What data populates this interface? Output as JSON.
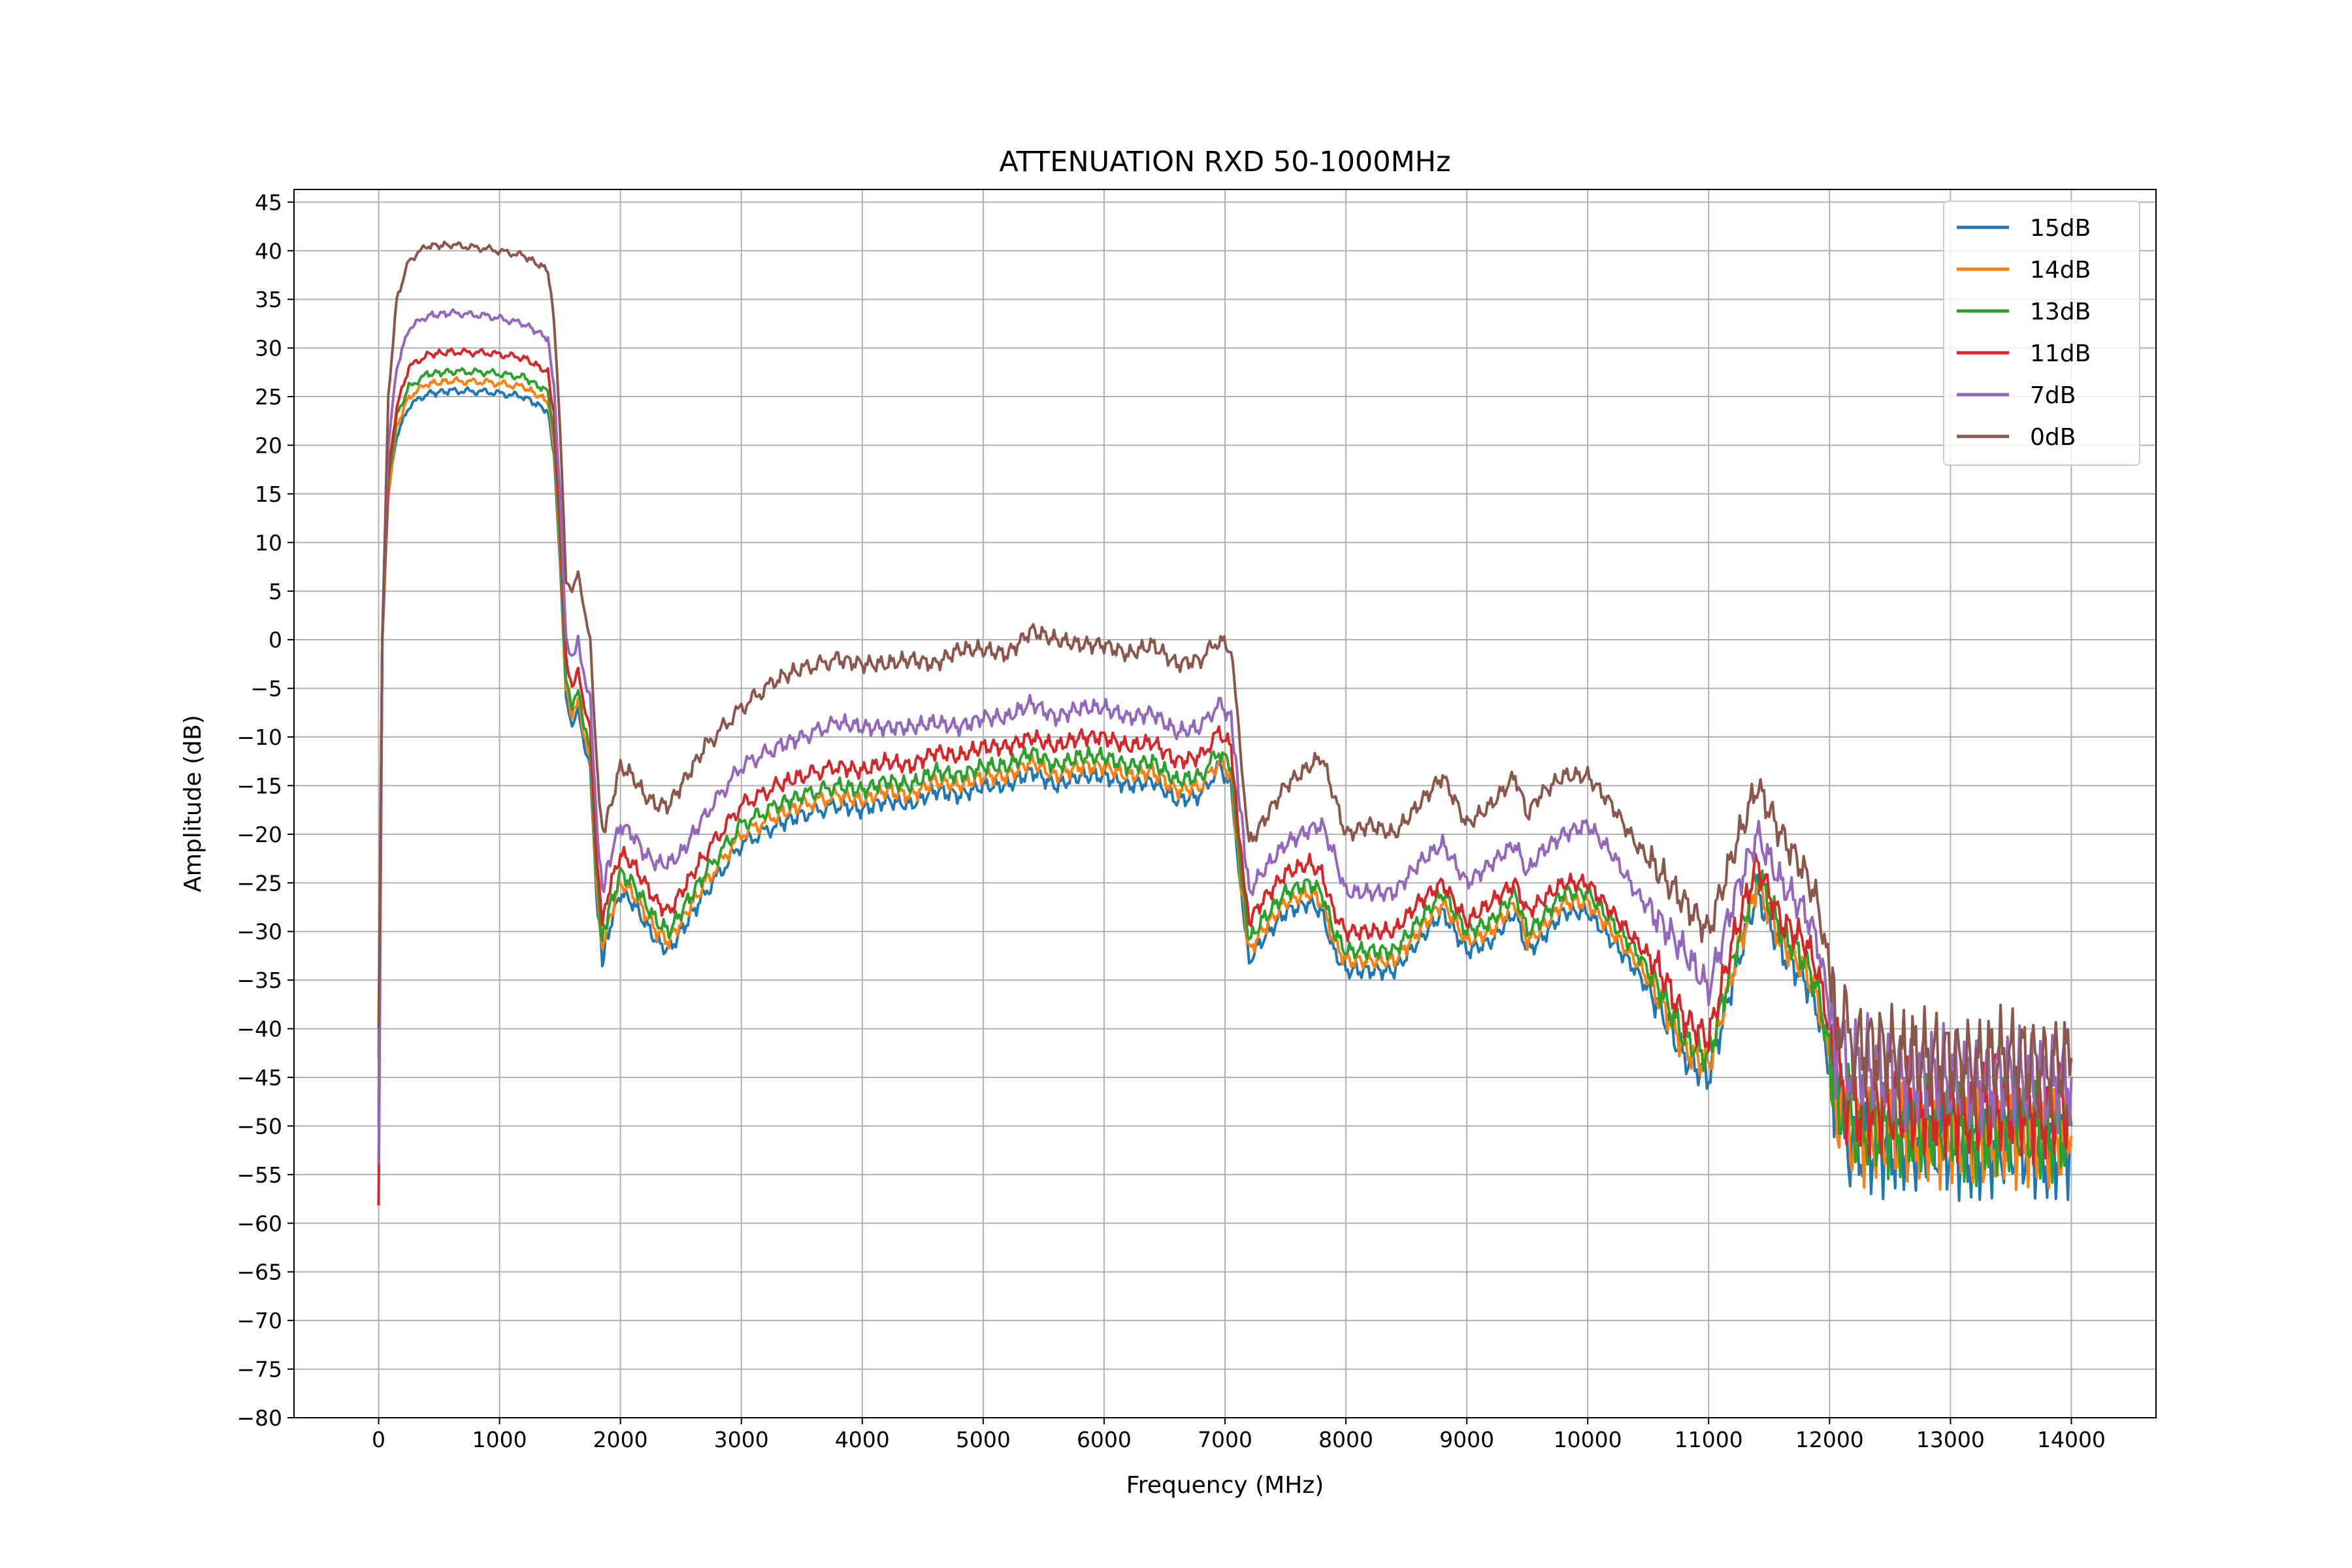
{
  "chart_data": {
    "type": "line",
    "title": "ATTENUATION RXD 50-1000MHz",
    "xlabel": "Frequency (MHz)",
    "ylabel": "Amplitude (dB)",
    "xlim": [
      -700,
      14700
    ],
    "ylim": [
      -80,
      46.3
    ],
    "xticks": [
      0,
      1000,
      2000,
      3000,
      4000,
      5000,
      6000,
      7000,
      8000,
      9000,
      10000,
      11000,
      12000,
      13000,
      14000
    ],
    "yticks": [
      45,
      40,
      35,
      30,
      25,
      20,
      15,
      10,
      5,
      0,
      -5,
      -10,
      -15,
      -20,
      -25,
      -30,
      -35,
      -40,
      -45,
      -50,
      -55,
      -60,
      -65,
      -70,
      -75,
      -80
    ],
    "grid": true,
    "legend_position": "top-right",
    "x": [
      0,
      30,
      80,
      150,
      250,
      400,
      600,
      900,
      1200,
      1400,
      1450,
      1500,
      1550,
      1600,
      1650,
      1700,
      1750,
      1800,
      1850,
      1900,
      2000,
      2100,
      2200,
      2300,
      2400,
      2500,
      2700,
      3000,
      3300,
      3500,
      3800,
      4000,
      4200,
      4400,
      4600,
      4800,
      5000,
      5200,
      5400,
      5600,
      5800,
      6000,
      6200,
      6400,
      6600,
      6800,
      6950,
      7050,
      7100,
      7150,
      7200,
      7300,
      7500,
      7700,
      7800,
      7900,
      8000,
      8200,
      8400,
      8600,
      8800,
      9000,
      9200,
      9400,
      9500,
      9600,
      9800,
      10000,
      10200,
      10400,
      10600,
      10800,
      11000,
      11200,
      11400,
      11600,
      11800,
      11900,
      12000,
      12050,
      12200,
      12400,
      12600,
      12800,
      13000,
      13200,
      13400,
      13600,
      13800,
      14000
    ],
    "series": [
      {
        "name": "15dB",
        "color": "#1f77b4",
        "values": [
          -43,
          0,
          15,
          21,
          24,
          25.3,
          25.6,
          25.5,
          25,
          23.5,
          19,
          8,
          -6,
          -9,
          -7,
          -11,
          -13,
          -26,
          -33,
          -30,
          -26,
          -27,
          -29,
          -31,
          -32,
          -30,
          -26,
          -21,
          -19,
          -18,
          -17,
          -17.5,
          -16.5,
          -17,
          -15.5,
          -16,
          -15,
          -15,
          -13.5,
          -15,
          -14,
          -14,
          -15,
          -14.5,
          -16.5,
          -16,
          -13,
          -15,
          -22,
          -28,
          -33,
          -31,
          -28,
          -27,
          -28,
          -32,
          -34,
          -34,
          -34,
          -31,
          -28,
          -32,
          -31,
          -28,
          -32,
          -31,
          -28,
          -28,
          -31,
          -34,
          -38,
          -43,
          -45,
          -35,
          -26,
          -32,
          -35,
          -38,
          -44,
          -48,
          -52,
          -52,
          -52,
          -52,
          -52,
          -53,
          -52,
          -52,
          -53,
          -52
        ]
      },
      {
        "name": "14dB",
        "color": "#ff7f0e",
        "values": [
          -48,
          0,
          15,
          22,
          25,
          26.3,
          26.6,
          26.5,
          26,
          24.5,
          20,
          9,
          -5,
          -8,
          -6,
          -10,
          -12,
          -25,
          -32,
          -29,
          -25,
          -26,
          -28,
          -30,
          -31,
          -29,
          -25,
          -20,
          -18,
          -17,
          -16,
          -16.5,
          -15.5,
          -16,
          -14.5,
          -15,
          -14,
          -14,
          -12.5,
          -14,
          -13,
          -13,
          -14,
          -13.5,
          -15.5,
          -15,
          -12.5,
          -14,
          -21,
          -27,
          -32,
          -30,
          -27,
          -26,
          -27,
          -31,
          -33,
          -33,
          -33,
          -30,
          -27,
          -31,
          -30,
          -27,
          -31,
          -30,
          -27,
          -27,
          -30,
          -33,
          -37,
          -42,
          -44,
          -34,
          -25,
          -31,
          -34,
          -37,
          -43,
          -47,
          -51,
          -51,
          -51,
          -51,
          -51,
          -52,
          -51,
          -51,
          -52,
          -51
        ]
      },
      {
        "name": "13dB",
        "color": "#2ca02c",
        "values": [
          -50,
          0,
          16,
          23,
          26,
          27.3,
          27.6,
          27.5,
          27,
          25.5,
          21,
          10,
          -4,
          -7,
          -5,
          -9,
          -11,
          -24,
          -31,
          -28,
          -24,
          -25,
          -27,
          -29,
          -30,
          -28,
          -24,
          -19,
          -17,
          -16,
          -15,
          -15.5,
          -14.5,
          -15,
          -13.5,
          -14,
          -13,
          -13,
          -11.5,
          -13,
          -12,
          -12,
          -13,
          -12.5,
          -14.5,
          -14,
          -11.5,
          -13,
          -20,
          -26,
          -31,
          -29,
          -26,
          -25,
          -26,
          -30,
          -32,
          -32,
          -32,
          -29,
          -26,
          -30,
          -29,
          -26,
          -30,
          -29,
          -26,
          -26,
          -29,
          -32,
          -36,
          -41,
          -43,
          -33,
          -24,
          -30,
          -33,
          -36,
          -42,
          -46,
          -50,
          -50,
          -50,
          -50,
          -50,
          -51,
          -50,
          -50,
          -51,
          -50
        ]
      },
      {
        "name": "11dB",
        "color": "#d62728",
        "values": [
          -58,
          0,
          17,
          24,
          28,
          29.3,
          29.6,
          29.5,
          29,
          27.5,
          23,
          12,
          -2,
          -5,
          -3,
          -7,
          -9,
          -22,
          -29,
          -26,
          -22,
          -23,
          -25,
          -27,
          -28,
          -26,
          -22,
          -17,
          -15,
          -14,
          -13,
          -13.5,
          -12.5,
          -13,
          -11.5,
          -12,
          -11,
          -11,
          -10,
          -11,
          -10,
          -10,
          -11,
          -10.5,
          -12.5,
          -12,
          -9.5,
          -11,
          -18,
          -24,
          -29,
          -27,
          -24,
          -23,
          -24,
          -28,
          -30,
          -30,
          -30,
          -27,
          -25,
          -29,
          -27,
          -25,
          -28,
          -27,
          -25,
          -25,
          -28,
          -31,
          -34,
          -39,
          -41,
          -31,
          -23,
          -29,
          -31,
          -34,
          -40,
          -44,
          -48,
          -48,
          -48,
          -48,
          -48,
          -49,
          -48,
          -48,
          -49,
          -48
        ]
      },
      {
        "name": "7dB",
        "color": "#9467bd",
        "values": [
          -54,
          0,
          20,
          28,
          32,
          33.3,
          33.6,
          33.3,
          32.5,
          31,
          26,
          15,
          0,
          -2,
          0,
          -4,
          -6,
          -18,
          -26,
          -23,
          -19,
          -20,
          -22,
          -23,
          -23,
          -22,
          -18,
          -13,
          -11,
          -10,
          -8.5,
          -9,
          -9,
          -9,
          -8.5,
          -9,
          -8,
          -8,
          -6.5,
          -8,
          -7,
          -7,
          -8,
          -7.5,
          -9.5,
          -9,
          -6.5,
          -8,
          -14,
          -20,
          -26,
          -24,
          -21,
          -19.5,
          -19,
          -22,
          -26,
          -26,
          -26,
          -23,
          -21,
          -25,
          -23,
          -21,
          -24,
          -22,
          -20,
          -19,
          -22,
          -26,
          -29,
          -32,
          -36,
          -27,
          -20,
          -25,
          -28,
          -31,
          -38,
          -42,
          -44,
          -44,
          -45,
          -45,
          -45,
          -46,
          -45,
          -45,
          -46,
          -45
        ]
      },
      {
        "name": "0dB",
        "color": "#8c564b",
        "values": [
          -40,
          0,
          25,
          35,
          39,
          40.5,
          40.6,
          40.2,
          39.5,
          38,
          33,
          22,
          6,
          5,
          7,
          3,
          0,
          -12,
          -20,
          -18,
          -13,
          -14,
          -16,
          -17,
          -17,
          -15,
          -11,
          -7,
          -4,
          -3,
          -2,
          -2.5,
          -2.5,
          -2,
          -2.5,
          -1,
          -1,
          -1.5,
          1,
          0,
          -0.5,
          -0.5,
          -1.5,
          -0.5,
          -2.5,
          -2,
          0,
          -1,
          -7,
          -15,
          -21,
          -19,
          -15,
          -13,
          -12,
          -16,
          -20,
          -19,
          -20,
          -17,
          -14,
          -19,
          -17,
          -14,
          -18,
          -16,
          -14,
          -14,
          -17,
          -21,
          -24,
          -27,
          -30,
          -22,
          -15,
          -20,
          -24,
          -27,
          -34,
          -38,
          -42,
          -42,
          -43,
          -43,
          -43,
          -44,
          -43,
          -43,
          -44,
          -43
        ]
      }
    ]
  }
}
